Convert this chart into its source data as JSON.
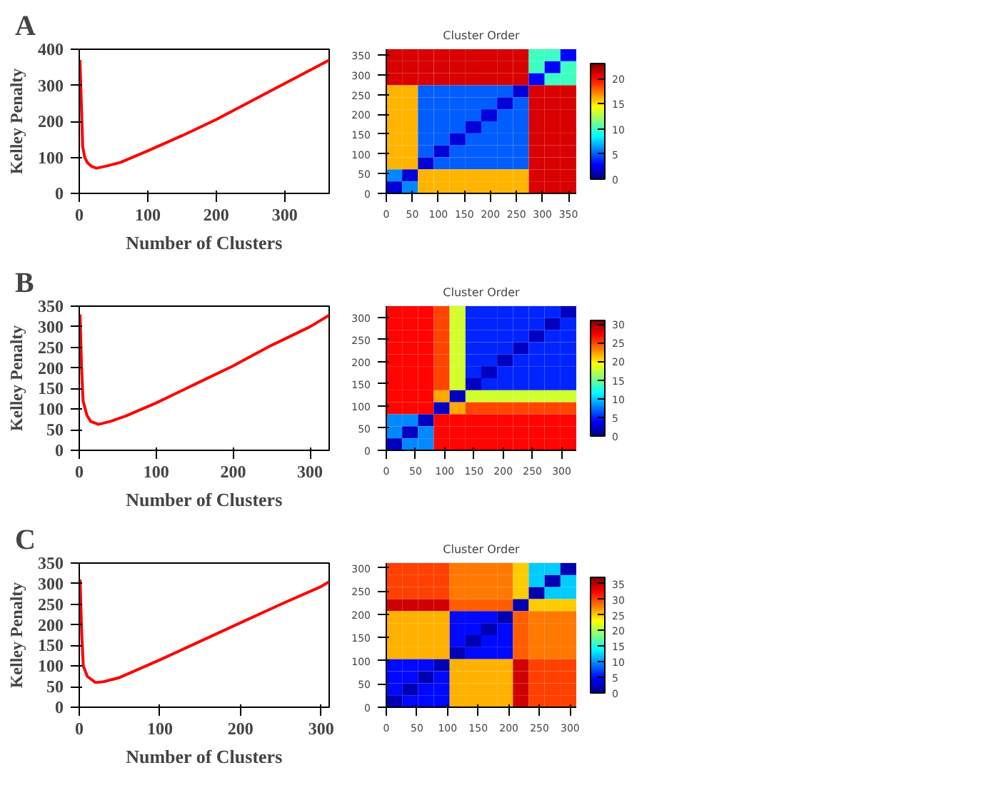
{
  "chart_data": [
    {
      "type": "line",
      "annotations": [
        "A"
      ],
      "xlabel": "Number of Clusters",
      "ylabel": "Kelley Penalty",
      "xlim": [
        0,
        365
      ],
      "ylim": [
        0,
        400
      ],
      "xticks": [
        0,
        100,
        200,
        300
      ],
      "yticks": [
        0,
        100,
        200,
        300,
        400
      ],
      "grid": false,
      "marker": "none",
      "line_style": "solid",
      "series": [
        {
          "color": "#ff0000",
          "x": [
            1,
            3,
            5,
            8,
            12,
            18,
            25,
            40,
            60,
            100,
            150,
            200,
            250,
            300,
            365
          ],
          "values": [
            370,
            250,
            130,
            100,
            85,
            75,
            70,
            76,
            86,
            118,
            160,
            205,
            255,
            305,
            370
          ]
        }
      ]
    },
    {
      "type": "heatmap",
      "title": "Cluster Order",
      "xlim": [
        0,
        365
      ],
      "ylim": [
        0,
        365
      ],
      "xticks": [
        0,
        50,
        100,
        150,
        200,
        250,
        300,
        350
      ],
      "yticks": [
        0,
        50,
        100,
        150,
        200,
        250,
        300,
        350
      ],
      "clim": [
        0,
        23
      ],
      "cticks": [
        0,
        5,
        10,
        15,
        20
      ],
      "x": [
        15.2,
        45.6,
        76,
        106.5,
        136.9,
        167.3,
        197.7,
        228.1,
        258.5,
        289,
        319.4,
        349.8
      ],
      "cells": [
        [
          21,
          21,
          21,
          21,
          21,
          21,
          21,
          21,
          21,
          10,
          10,
          3
        ],
        [
          21,
          21,
          21,
          21,
          21,
          21,
          21,
          21,
          21,
          10,
          3,
          10
        ],
        [
          21,
          21,
          21,
          21,
          21,
          21,
          21,
          21,
          21,
          3,
          10,
          10
        ],
        [
          16,
          16,
          5,
          5,
          5,
          5,
          5,
          5,
          2,
          21,
          21,
          21
        ],
        [
          16,
          16,
          5,
          5,
          5,
          5,
          5,
          2,
          5,
          21,
          21,
          21
        ],
        [
          16,
          16,
          5,
          5,
          5,
          5,
          2,
          5,
          5,
          21,
          21,
          21
        ],
        [
          16,
          16,
          5,
          5,
          5,
          2,
          5,
          5,
          5,
          21,
          21,
          21
        ],
        [
          16,
          16,
          5,
          5,
          2,
          5,
          5,
          5,
          5,
          21,
          21,
          21
        ],
        [
          16,
          16,
          5,
          2,
          5,
          5,
          5,
          5,
          5,
          21,
          21,
          21
        ],
        [
          16,
          16,
          2,
          5,
          5,
          5,
          5,
          5,
          5,
          21,
          21,
          21
        ],
        [
          6,
          2,
          16,
          16,
          16,
          16,
          16,
          16,
          16,
          21,
          21,
          21
        ],
        [
          2,
          6,
          16,
          16,
          16,
          16,
          16,
          16,
          16,
          21,
          21,
          21
        ]
      ]
    },
    {
      "type": "line",
      "annotations": [
        "B"
      ],
      "xlabel": "Number of Clusters",
      "ylabel": "Kelley Penalty",
      "xlim": [
        0,
        325
      ],
      "ylim": [
        0,
        350
      ],
      "xticks": [
        0,
        100,
        200,
        300
      ],
      "yticks": [
        0,
        50,
        100,
        150,
        200,
        250,
        300,
        350
      ],
      "grid": false,
      "marker": "none",
      "line_style": "solid",
      "series": [
        {
          "color": "#ff0000",
          "x": [
            1,
            3,
            5,
            10,
            15,
            25,
            40,
            60,
            100,
            150,
            200,
            250,
            300,
            325
          ],
          "values": [
            330,
            200,
            120,
            85,
            70,
            63,
            70,
            83,
            115,
            160,
            205,
            255,
            300,
            328
          ]
        }
      ]
    },
    {
      "type": "heatmap",
      "title": "Cluster Order",
      "xlim": [
        0,
        325
      ],
      "ylim": [
        0,
        325
      ],
      "xticks": [
        0,
        50,
        100,
        150,
        200,
        250,
        300
      ],
      "yticks": [
        0,
        50,
        100,
        150,
        200,
        250,
        300
      ],
      "clim": [
        0,
        31
      ],
      "cticks": [
        0,
        5,
        10,
        15,
        20,
        25,
        30
      ],
      "x": [
        13.5,
        40.6,
        67.7,
        94.8,
        121.9,
        149,
        176,
        203.1,
        230.2,
        257.3,
        284.4,
        311.5
      ],
      "cells": [
        [
          27,
          27,
          27,
          25,
          18,
          5,
          5,
          5,
          5,
          5,
          5,
          2
        ],
        [
          27,
          27,
          27,
          25,
          18,
          5,
          5,
          5,
          5,
          5,
          2,
          5
        ],
        [
          27,
          27,
          27,
          25,
          18,
          5,
          5,
          5,
          5,
          2,
          5,
          5
        ],
        [
          27,
          27,
          27,
          25,
          18,
          5,
          5,
          5,
          2,
          5,
          5,
          5
        ],
        [
          27,
          27,
          27,
          25,
          18,
          5,
          5,
          2,
          5,
          5,
          5,
          5
        ],
        [
          27,
          27,
          27,
          25,
          18,
          5,
          2,
          5,
          5,
          5,
          5,
          5
        ],
        [
          27,
          27,
          27,
          25,
          18,
          2,
          5,
          5,
          5,
          5,
          5,
          5
        ],
        [
          27,
          27,
          27,
          22,
          2,
          18,
          18,
          18,
          18,
          18,
          18,
          18
        ],
        [
          27,
          27,
          27,
          2,
          22,
          25,
          25,
          25,
          25,
          25,
          25,
          25
        ],
        [
          8,
          8,
          2,
          27,
          27,
          27,
          27,
          27,
          27,
          27,
          27,
          27
        ],
        [
          8,
          2,
          8,
          27,
          27,
          27,
          27,
          27,
          27,
          27,
          27,
          27
        ],
        [
          2,
          8,
          8,
          27,
          27,
          27,
          27,
          27,
          27,
          27,
          27,
          27
        ]
      ]
    },
    {
      "type": "line",
      "annotations": [
        "C"
      ],
      "xlabel": "Number of Clusters",
      "ylabel": "Kelley Penalty",
      "xlim": [
        0,
        310
      ],
      "ylim": [
        0,
        350
      ],
      "xticks": [
        0,
        100,
        200,
        300
      ],
      "yticks": [
        0,
        50,
        100,
        150,
        200,
        250,
        300,
        350
      ],
      "grid": false,
      "marker": "none",
      "line_style": "solid",
      "series": [
        {
          "color": "#ff0000",
          "x": [
            1,
            3,
            5,
            10,
            20,
            30,
            50,
            100,
            150,
            200,
            250,
            300,
            310
          ],
          "values": [
            310,
            180,
            100,
            75,
            60,
            62,
            72,
            115,
            160,
            205,
            250,
            293,
            305
          ]
        }
      ]
    },
    {
      "type": "heatmap",
      "title": "Cluster Order",
      "xlim": [
        0,
        310
      ],
      "ylim": [
        0,
        310
      ],
      "xticks": [
        0,
        50,
        100,
        150,
        200,
        250,
        300
      ],
      "yticks": [
        0,
        50,
        100,
        150,
        200,
        250,
        300
      ],
      "clim": [
        0,
        37
      ],
      "cticks": [
        0,
        5,
        10,
        15,
        20,
        25,
        30,
        35
      ],
      "x": [
        12.9,
        38.8,
        64.6,
        90.4,
        116.3,
        142.1,
        167.9,
        193.8,
        219.6,
        245.4,
        271.3,
        297.1
      ],
      "cells": [
        [
          30,
          30,
          30,
          30,
          28,
          28,
          28,
          28,
          25,
          12,
          12,
          2
        ],
        [
          30,
          30,
          30,
          30,
          28,
          28,
          28,
          28,
          25,
          12,
          2,
          12
        ],
        [
          30,
          30,
          30,
          30,
          28,
          28,
          28,
          28,
          25,
          2,
          12,
          12
        ],
        [
          34,
          34,
          34,
          34,
          29,
          29,
          29,
          29,
          2,
          25,
          25,
          25
        ],
        [
          26,
          26,
          26,
          26,
          5,
          5,
          5,
          2,
          29,
          28,
          28,
          28
        ],
        [
          26,
          26,
          26,
          26,
          5,
          5,
          2,
          5,
          29,
          28,
          28,
          28
        ],
        [
          26,
          26,
          26,
          26,
          5,
          2,
          5,
          5,
          29,
          28,
          28,
          28
        ],
        [
          26,
          26,
          26,
          26,
          2,
          5,
          5,
          5,
          29,
          28,
          28,
          28
        ],
        [
          5,
          5,
          5,
          2,
          26,
          26,
          26,
          26,
          34,
          30,
          30,
          30
        ],
        [
          5,
          5,
          2,
          5,
          26,
          26,
          26,
          26,
          34,
          30,
          30,
          30
        ],
        [
          5,
          2,
          5,
          5,
          26,
          26,
          26,
          26,
          34,
          30,
          30,
          30
        ],
        [
          2,
          5,
          5,
          5,
          26,
          26,
          26,
          26,
          34,
          30,
          30,
          30
        ]
      ]
    }
  ]
}
